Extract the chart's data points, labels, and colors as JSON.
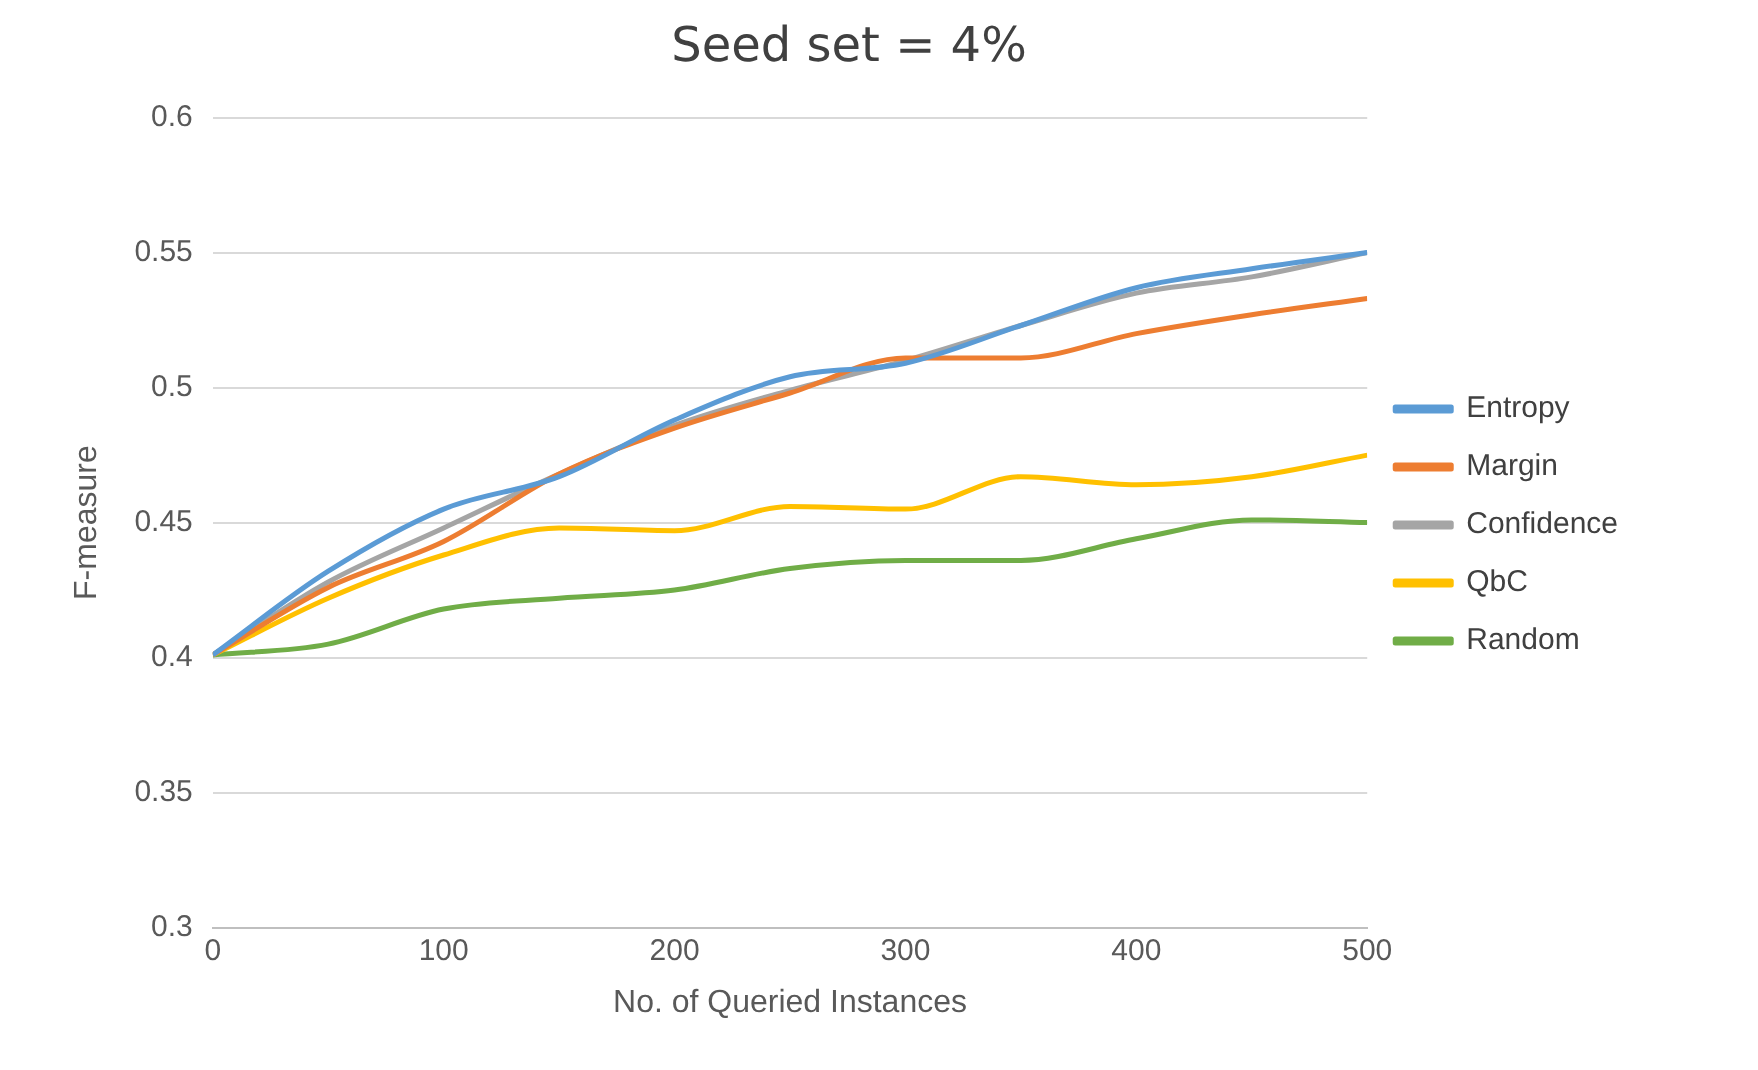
{
  "chart_data": {
    "type": "line",
    "title": "Seed set = 4%",
    "xlabel": "No. of Queried Instances",
    "ylabel": "F-measure",
    "x": [
      0,
      50,
      100,
      150,
      200,
      250,
      300,
      350,
      400,
      450,
      500
    ],
    "xlim": [
      0,
      500
    ],
    "xticks": [
      0,
      100,
      200,
      300,
      400,
      500
    ],
    "ylim": [
      0.3,
      0.6
    ],
    "yticks": [
      0.3,
      0.35,
      0.4,
      0.45,
      0.5,
      0.55,
      0.6
    ],
    "grid": "y",
    "legend": "right",
    "marker": "none",
    "line_style": "solid",
    "series": [
      {
        "name": "Entropy",
        "color": "#5b9bd5",
        "values": [
          0.401,
          0.432,
          0.455,
          0.467,
          0.488,
          0.504,
          0.509,
          0.523,
          0.537,
          0.544,
          0.55
        ]
      },
      {
        "name": "Margin",
        "color": "#ed7d31",
        "values": [
          0.401,
          0.426,
          0.443,
          0.468,
          0.485,
          0.498,
          0.511,
          0.511,
          0.52,
          0.527,
          0.533
        ]
      },
      {
        "name": "Confidence",
        "color": "#a5a5a5",
        "values": [
          0.401,
          0.428,
          0.448,
          0.468,
          0.486,
          0.499,
          0.51,
          0.523,
          0.535,
          0.541,
          0.55
        ]
      },
      {
        "name": "QbC",
        "color": "#ffc000",
        "values": [
          0.401,
          0.422,
          0.438,
          0.448,
          0.447,
          0.456,
          0.455,
          0.467,
          0.464,
          0.467,
          0.475
        ]
      },
      {
        "name": "Random",
        "color": "#70ad47",
        "values": [
          0.401,
          0.405,
          0.418,
          0.422,
          0.425,
          0.433,
          0.436,
          0.436,
          0.444,
          0.451,
          0.45
        ]
      }
    ]
  }
}
